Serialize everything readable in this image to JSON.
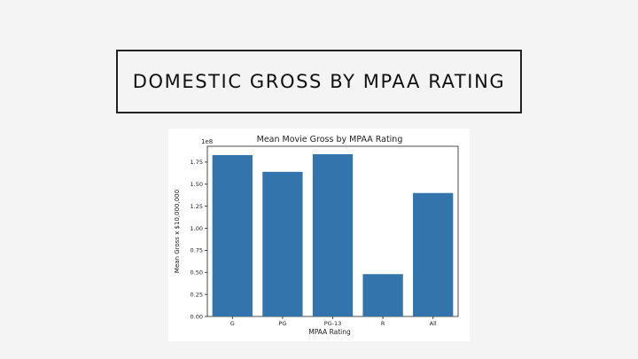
{
  "slide": {
    "title": "DOMESTIC GROSS BY MPAA RATING"
  },
  "chart_data": {
    "type": "bar",
    "title": "Mean Movie Gross by MPAA Rating",
    "xlabel": "MPAA Rating",
    "ylabel": "Mean Gross x $10,000,000",
    "offset_label": "1e8",
    "categories": [
      "G",
      "PG",
      "PG-13",
      "R",
      "All"
    ],
    "values": [
      1.83,
      1.64,
      1.84,
      0.48,
      1.4
    ],
    "yticks": [
      "0.00",
      "0.25",
      "0.50",
      "0.75",
      "1.00",
      "1.25",
      "1.50",
      "1.75"
    ],
    "ylim": [
      0,
      1.93
    ],
    "bar_color": "#3274ab",
    "grid": false,
    "legend": "none"
  }
}
